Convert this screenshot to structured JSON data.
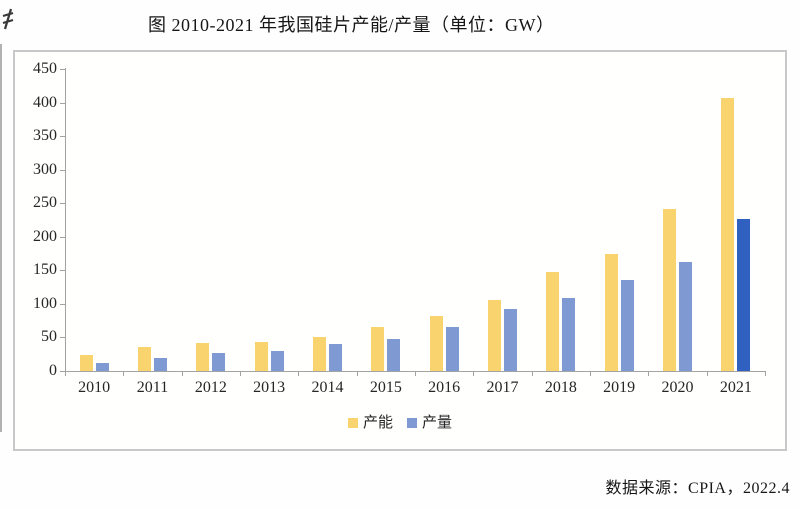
{
  "chart_data": {
    "type": "bar",
    "title": "图 2010-2021 年我国硅片产能/产量（单位：GW）",
    "unit": "GW",
    "categories": [
      "2010",
      "2011",
      "2012",
      "2013",
      "2014",
      "2015",
      "2016",
      "2017",
      "2018",
      "2019",
      "2020",
      "2021"
    ],
    "series": [
      {
        "name": "产能",
        "color": "#F9D36E",
        "values": [
          24,
          36,
          42,
          43,
          50,
          65,
          82,
          106,
          147,
          174,
          241,
          407
        ]
      },
      {
        "name": "产量",
        "color": "#7F99D2",
        "last_bar_color": "#3060C0",
        "values": [
          12,
          20,
          27,
          30,
          40,
          48,
          65,
          93,
          109,
          135,
          162,
          227
        ]
      }
    ],
    "ylim": [
      0,
      450
    ],
    "ytick_step": 50,
    "grid": false,
    "legend_position": "bottom",
    "axis_color": "#a3a3a3",
    "source": "数据来源：CPIA，2022.4"
  }
}
